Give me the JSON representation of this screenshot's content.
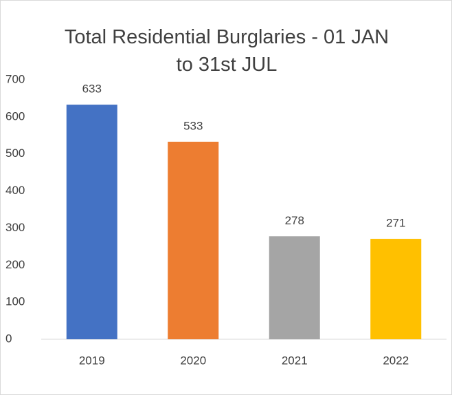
{
  "chart_data": {
    "type": "bar",
    "title": "Total Residential Burglaries - 01 JAN to 31st JUL",
    "categories": [
      "2019",
      "2020",
      "2021",
      "2022"
    ],
    "values": [
      633,
      533,
      278,
      271
    ],
    "colors": [
      "#4472c4",
      "#ed7d31",
      "#a5a5a5",
      "#ffc000"
    ],
    "ylim": [
      0,
      700
    ],
    "yticks": [
      0,
      100,
      200,
      300,
      400,
      500,
      600,
      700
    ],
    "grid": false
  }
}
